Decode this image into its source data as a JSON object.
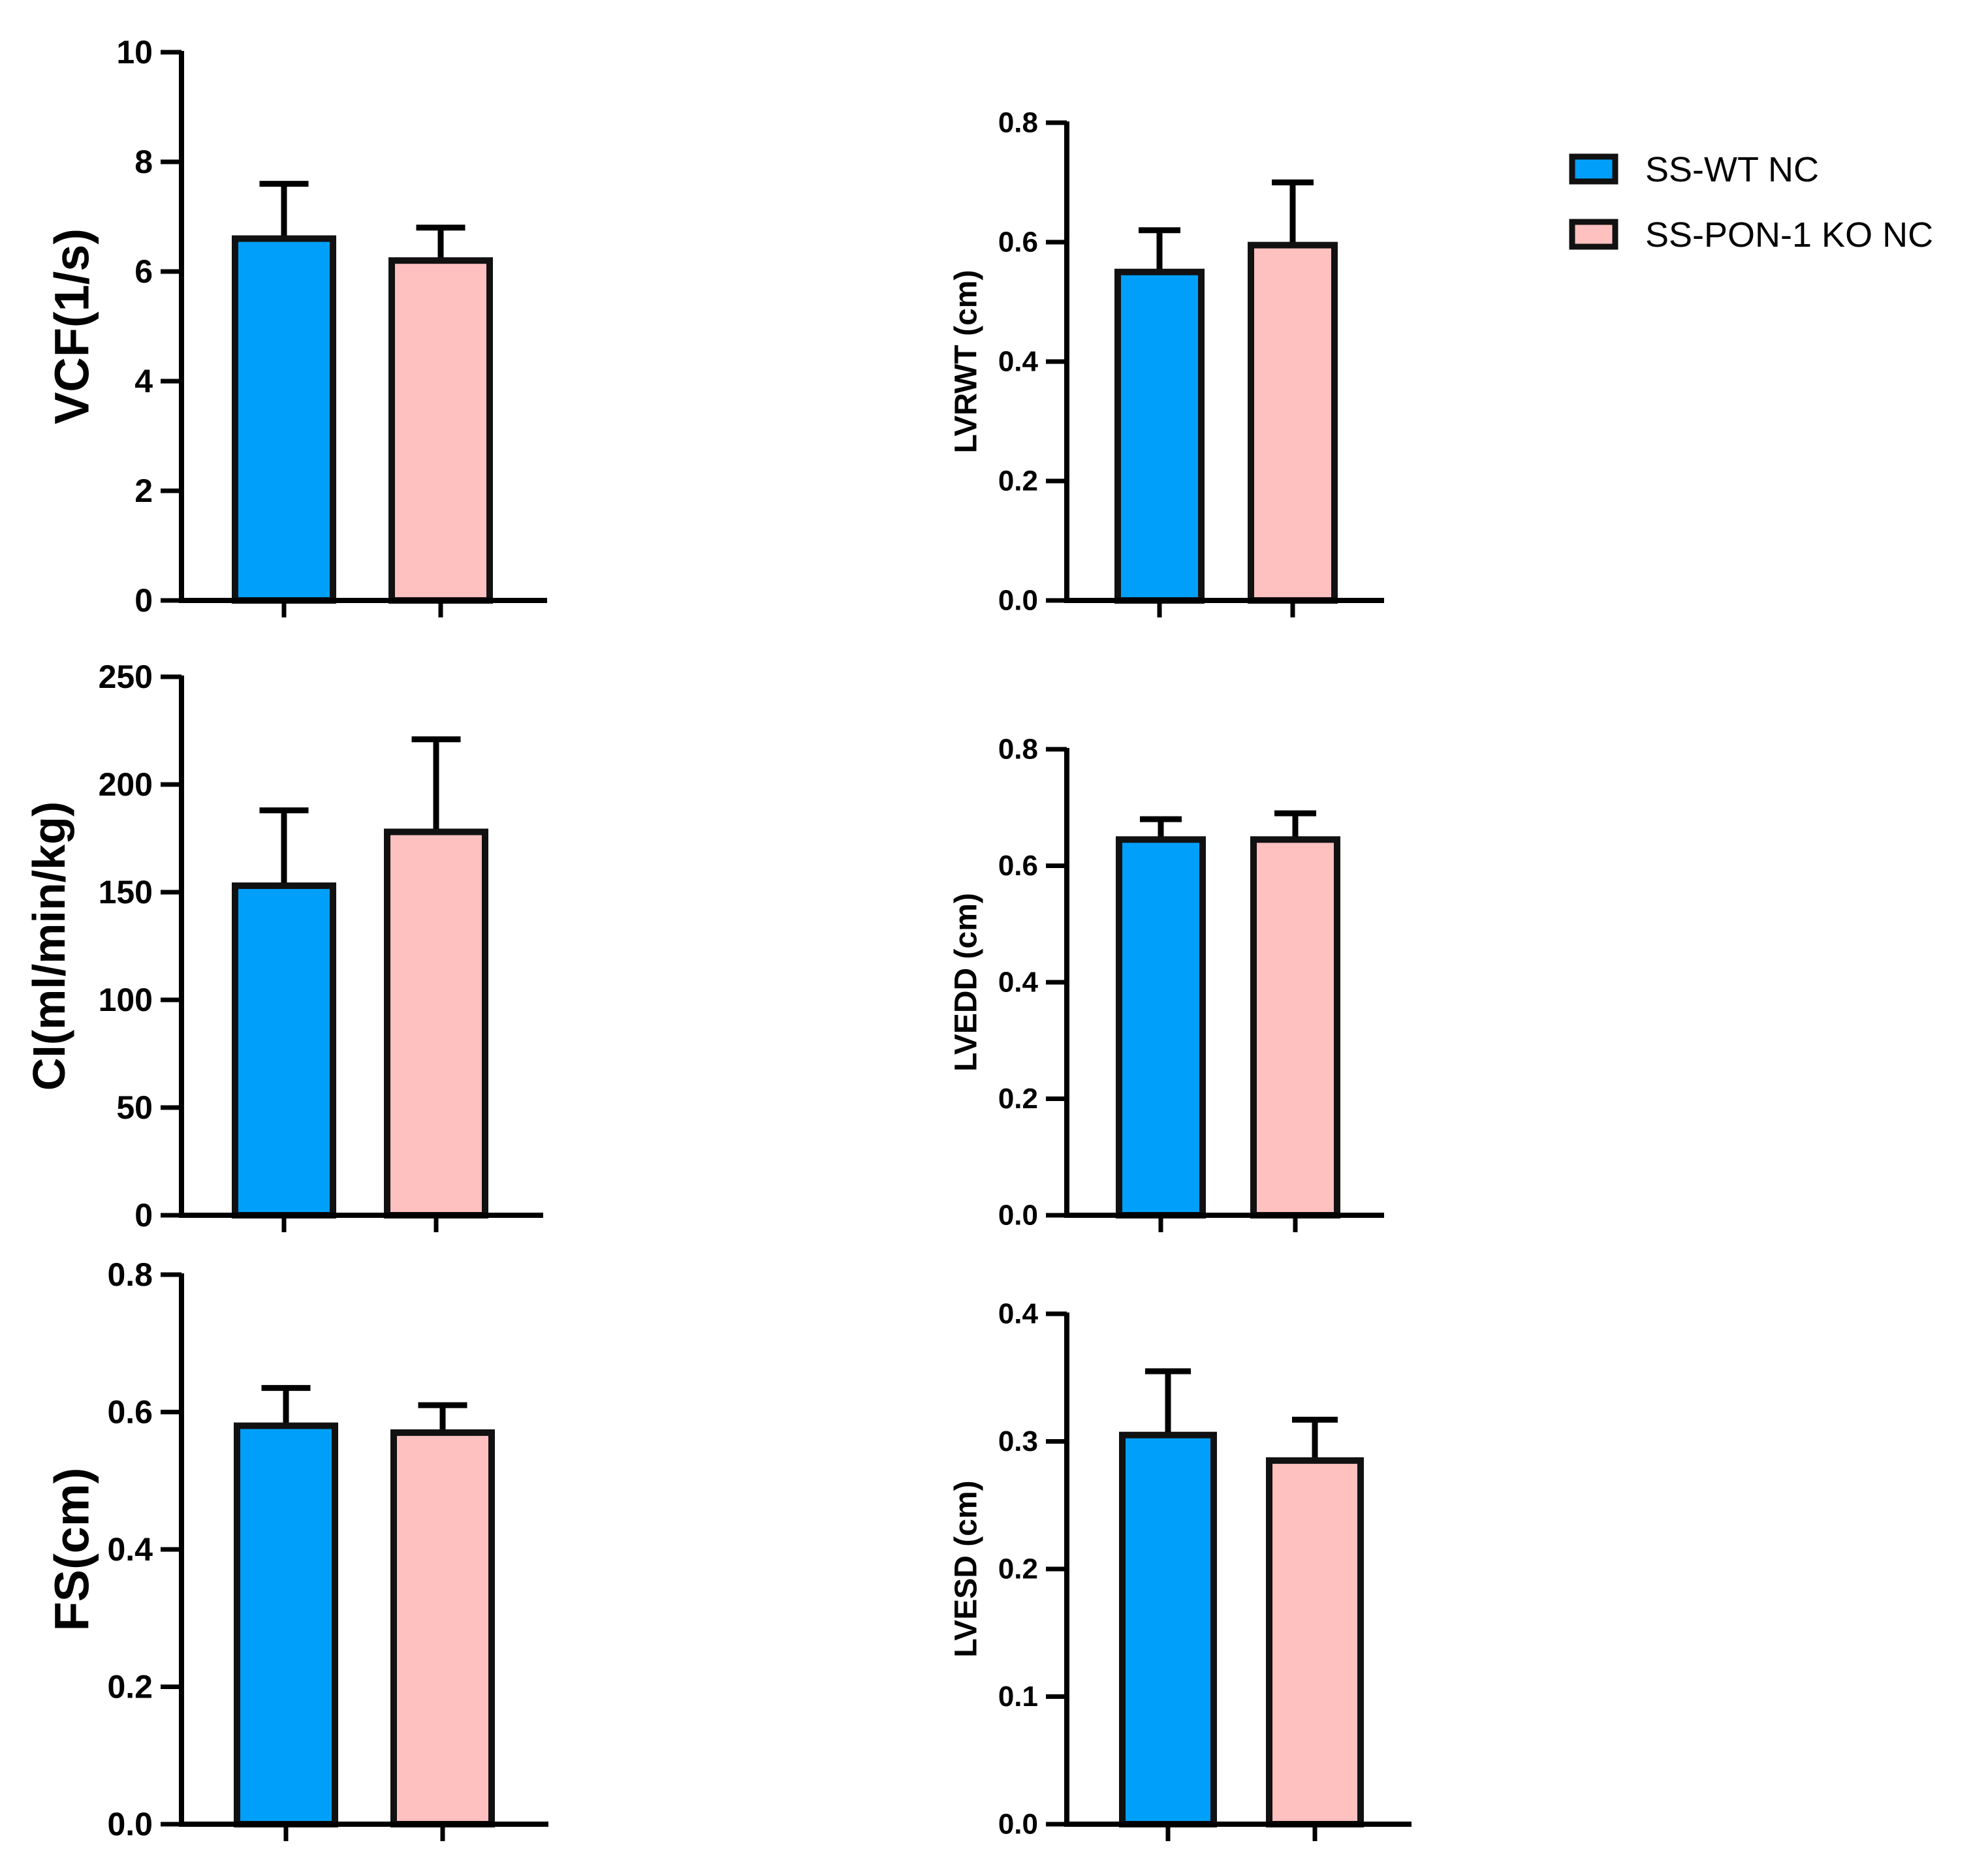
{
  "legend": {
    "entries": [
      {
        "label": "SS-WT NC",
        "color": "#00A0FA"
      },
      {
        "label": "SS-PON-1 KO NC",
        "color": "#FFC0C0"
      }
    ]
  },
  "chart_data": [
    {
      "id": "vcf",
      "type": "bar",
      "ylabel": "VCF(1/s)",
      "ylim": [
        0,
        10
      ],
      "yticks": [
        "0",
        "2",
        "4",
        "6",
        "8",
        "10"
      ],
      "tick_values": [
        0,
        2,
        4,
        6,
        8,
        10
      ],
      "series": [
        {
          "name": "SS-WT NC",
          "value": 6.6,
          "error": 1.0,
          "color": "#00A0FA"
        },
        {
          "name": "SS-PON-1 KO NC",
          "value": 6.2,
          "error": 0.6,
          "color": "#FFC0C0"
        }
      ]
    },
    {
      "id": "lvrwt",
      "type": "bar",
      "ylabel": "LVRWT (cm)",
      "ylim": [
        0,
        0.8
      ],
      "yticks": [
        "0.0",
        "0.2",
        "0.4",
        "0.6",
        "0.8"
      ],
      "tick_values": [
        0,
        0.2,
        0.4,
        0.6,
        0.8
      ],
      "series": [
        {
          "name": "SS-WT NC",
          "value": 0.55,
          "error": 0.07,
          "color": "#00A0FA"
        },
        {
          "name": "SS-PON-1 KO NC",
          "value": 0.595,
          "error": 0.105,
          "color": "#FFC0C0"
        }
      ]
    },
    {
      "id": "ci",
      "type": "bar",
      "ylabel": "CI(ml/min/kg)",
      "ylim": [
        0,
        250
      ],
      "yticks": [
        "0",
        "50",
        "100",
        "150",
        "200",
        "250"
      ],
      "tick_values": [
        0,
        50,
        100,
        150,
        200,
        250
      ],
      "series": [
        {
          "name": "SS-WT NC",
          "value": 153,
          "error": 35,
          "color": "#00A0FA"
        },
        {
          "name": "SS-PON-1 KO NC",
          "value": 178,
          "error": 43,
          "color": "#FFC0C0"
        }
      ]
    },
    {
      "id": "lvedd",
      "type": "bar",
      "ylabel": "LVEDD (cm)",
      "ylim": [
        0,
        0.8
      ],
      "yticks": [
        "0.0",
        "0.2",
        "0.4",
        "0.6",
        "0.8"
      ],
      "tick_values": [
        0,
        0.2,
        0.4,
        0.6,
        0.8
      ],
      "series": [
        {
          "name": "SS-WT NC",
          "value": 0.645,
          "error": 0.035,
          "color": "#00A0FA"
        },
        {
          "name": "SS-PON-1 KO NC",
          "value": 0.645,
          "error": 0.045,
          "color": "#FFC0C0"
        }
      ]
    },
    {
      "id": "fs",
      "type": "bar",
      "ylabel": "FS(cm)",
      "ylim": [
        0,
        0.8
      ],
      "yticks": [
        "0.0",
        "0.2",
        "0.4",
        "0.6",
        "0.8"
      ],
      "tick_values": [
        0,
        0.2,
        0.4,
        0.6,
        0.8
      ],
      "series": [
        {
          "name": "SS-WT NC",
          "value": 0.58,
          "error": 0.055,
          "color": "#00A0FA"
        },
        {
          "name": "SS-PON-1 KO NC",
          "value": 0.57,
          "error": 0.04,
          "color": "#FFC0C0"
        }
      ]
    },
    {
      "id": "lvesd",
      "type": "bar",
      "ylabel": "LVESD (cm)",
      "ylim": [
        0,
        0.4
      ],
      "yticks": [
        "0.0",
        "0.1",
        "0.2",
        "0.3",
        "0.4"
      ],
      "tick_values": [
        0,
        0.1,
        0.2,
        0.3,
        0.4
      ],
      "series": [
        {
          "name": "SS-WT NC",
          "value": 0.305,
          "error": 0.05,
          "color": "#00A0FA"
        },
        {
          "name": "SS-PON-1 KO NC",
          "value": 0.285,
          "error": 0.032,
          "color": "#FFC0C0"
        }
      ]
    }
  ]
}
